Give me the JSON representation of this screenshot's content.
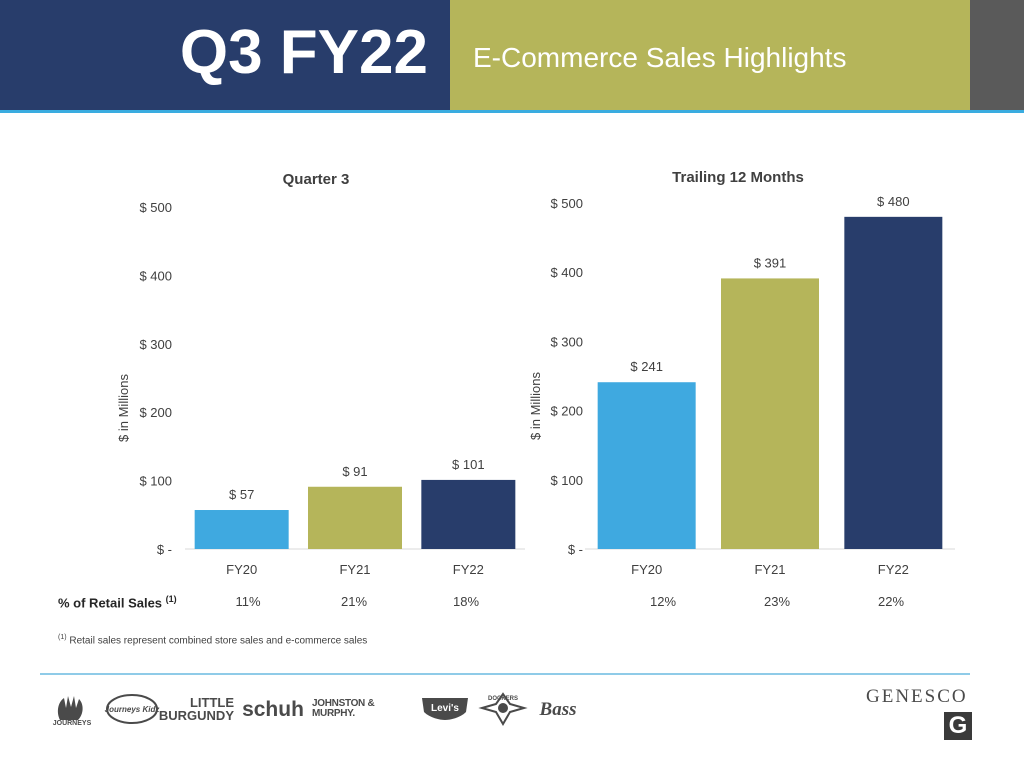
{
  "header": {
    "title": "Q3 FY22",
    "subtitle": "E-Commerce Sales Highlights"
  },
  "chart_data": [
    {
      "type": "bar",
      "title": "Quarter 3",
      "categories": [
        "FY20",
        "FY21",
        "FY22"
      ],
      "values": [
        57,
        91,
        101
      ],
      "data_labels": [
        "$ 57",
        "$ 91",
        "$ 101"
      ],
      "colors": [
        "#3fa9e0",
        "#b5b55a",
        "#283d6b"
      ],
      "ylabel": "$ in Millions",
      "ylim": [
        0,
        500
      ],
      "yticks": [
        0,
        100,
        200,
        300,
        400,
        500
      ],
      "ytick_labels": [
        "$ -",
        "$ 100",
        "$ 200",
        "$ 300",
        "$ 400",
        "$ 500"
      ],
      "grid": false
    },
    {
      "type": "bar",
      "title": "Trailing 12 Months",
      "categories": [
        "FY20",
        "FY21",
        "FY22"
      ],
      "values": [
        241,
        391,
        480
      ],
      "data_labels": [
        "$ 241",
        "$ 391",
        "$ 480"
      ],
      "colors": [
        "#3fa9e0",
        "#b5b55a",
        "#283d6b"
      ],
      "ylabel": "$ in Millions",
      "ylim": [
        0,
        500
      ],
      "yticks": [
        0,
        100,
        200,
        300,
        400,
        500
      ],
      "ytick_labels": [
        "$ -",
        "$ 100",
        "$ 200",
        "$ 300",
        "$ 400",
        "$ 500"
      ],
      "grid": false
    }
  ],
  "retail_sales": {
    "label": "% of Retail Sales",
    "note_marker": "(1)",
    "quarter": [
      "11%",
      "21%",
      "18%"
    ],
    "trailing": [
      "12%",
      "23%",
      "22%"
    ]
  },
  "footnote": {
    "marker": "(1)",
    "text": "Retail sales represent combined store sales and e-commerce sales"
  },
  "brands": {
    "journeys": "JOURNEYS",
    "journeys_kidz": "Journeys Kidz",
    "little_burgundy_1": "LITTLE",
    "little_burgundy_2": "BURGUNDY",
    "schuh": "schuh",
    "johnston_murphy": "JOHNSTON & MURPHY.",
    "levis": "Levi's",
    "dockers": "DOCKERS",
    "bass": "Bass",
    "genesco": "GENESCO",
    "genesco_mark": "G"
  }
}
